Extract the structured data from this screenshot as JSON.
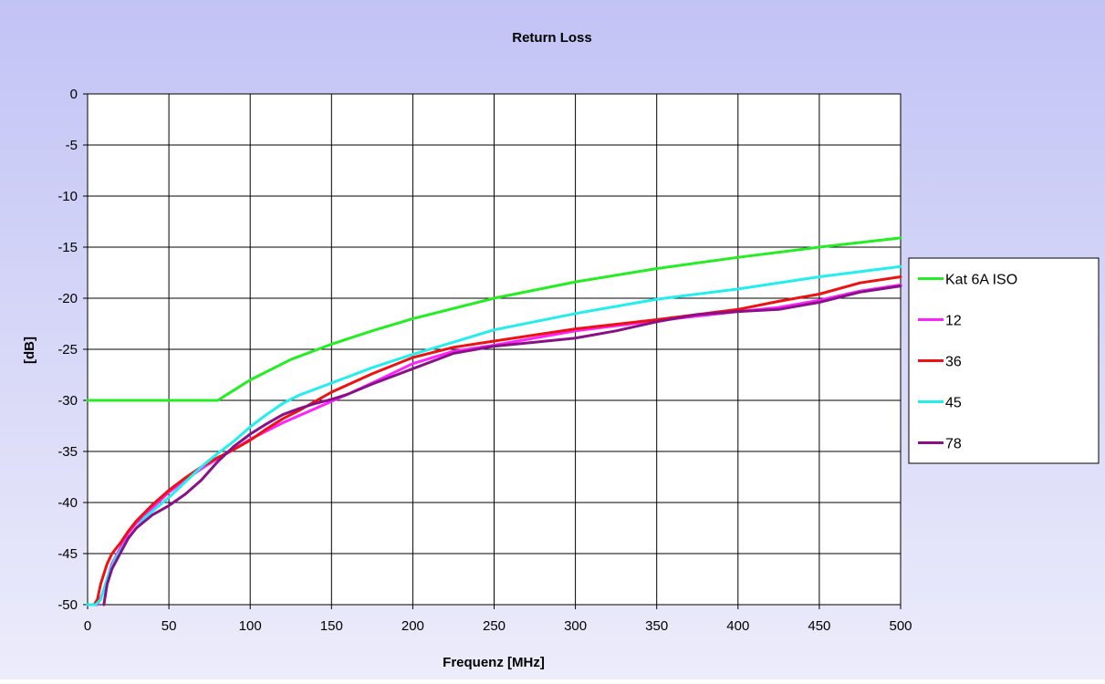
{
  "chart_data": {
    "type": "line",
    "title": "Return Loss",
    "xlabel": "Frequenz [MHz]",
    "ylabel": "[dB]",
    "xlim": [
      0,
      500
    ],
    "ylim": [
      -50,
      0
    ],
    "x_ticks": [
      0,
      50,
      100,
      150,
      200,
      250,
      300,
      350,
      400,
      450,
      500
    ],
    "y_ticks": [
      0,
      -5,
      -10,
      -15,
      -20,
      -25,
      -30,
      -35,
      -40,
      -45,
      -50
    ],
    "grid": true,
    "legend_position": "right",
    "colors": {
      "background_top": "#c2c3f5",
      "background_bottom": "#ececfb",
      "plot_area": "#ffffff",
      "grid": "#000000"
    },
    "series": [
      {
        "name": "Kat 6A ISO",
        "color": "#22ee22",
        "points": [
          [
            0,
            -30
          ],
          [
            80,
            -30
          ],
          [
            100,
            -28
          ],
          [
            125,
            -26
          ],
          [
            150,
            -24.5
          ],
          [
            175,
            -23.2
          ],
          [
            200,
            -22
          ],
          [
            250,
            -20
          ],
          [
            300,
            -18.4
          ],
          [
            350,
            -17.1
          ],
          [
            400,
            -16
          ],
          [
            450,
            -15
          ],
          [
            500,
            -14.1
          ]
        ]
      },
      {
        "name": "12",
        "color": "#ff22ff",
        "points": [
          [
            3,
            -50
          ],
          [
            6,
            -50
          ],
          [
            9,
            -49
          ],
          [
            12,
            -47.5
          ],
          [
            15,
            -46
          ],
          [
            20,
            -44.5
          ],
          [
            25,
            -43
          ],
          [
            30,
            -42
          ],
          [
            40,
            -40.5
          ],
          [
            50,
            -39
          ],
          [
            60,
            -37.8
          ],
          [
            70,
            -36.7
          ],
          [
            80,
            -35.7
          ],
          [
            90,
            -34.8
          ],
          [
            100,
            -33.8
          ],
          [
            110,
            -33
          ],
          [
            120,
            -32.2
          ],
          [
            130,
            -31.5
          ],
          [
            140,
            -30.8
          ],
          [
            150,
            -30.1
          ],
          [
            160,
            -29.4
          ],
          [
            175,
            -28.3
          ],
          [
            200,
            -26.4
          ],
          [
            225,
            -25.2
          ],
          [
            250,
            -24.6
          ],
          [
            275,
            -23.9
          ],
          [
            300,
            -23.2
          ],
          [
            350,
            -22.2
          ],
          [
            400,
            -21.3
          ],
          [
            425,
            -20.9
          ],
          [
            450,
            -20.2
          ],
          [
            475,
            -19.3
          ],
          [
            500,
            -18.7
          ]
        ]
      },
      {
        "name": "36",
        "color": "#ee1111",
        "points": [
          [
            4,
            -50
          ],
          [
            6,
            -49.5
          ],
          [
            8,
            -48
          ],
          [
            10,
            -47
          ],
          [
            12,
            -46
          ],
          [
            15,
            -45
          ],
          [
            20,
            -44
          ],
          [
            25,
            -42.8
          ],
          [
            30,
            -41.8
          ],
          [
            40,
            -40.2
          ],
          [
            50,
            -38.8
          ],
          [
            60,
            -37.6
          ],
          [
            70,
            -36.5
          ],
          [
            80,
            -35.6
          ],
          [
            90,
            -34.8
          ],
          [
            100,
            -33.9
          ],
          [
            110,
            -32.8
          ],
          [
            120,
            -31.8
          ],
          [
            130,
            -31
          ],
          [
            140,
            -30.1
          ],
          [
            150,
            -29.2
          ],
          [
            175,
            -27.4
          ],
          [
            200,
            -25.8
          ],
          [
            225,
            -24.8
          ],
          [
            250,
            -24.2
          ],
          [
            300,
            -23
          ],
          [
            350,
            -22.1
          ],
          [
            400,
            -21.1
          ],
          [
            425,
            -20.3
          ],
          [
            450,
            -19.6
          ],
          [
            475,
            -18.5
          ],
          [
            500,
            -17.9
          ]
        ]
      },
      {
        "name": "45",
        "color": "#22eeee",
        "points": [
          [
            0,
            -50
          ],
          [
            5,
            -50
          ],
          [
            8,
            -49.5
          ],
          [
            10,
            -48.5
          ],
          [
            13,
            -47
          ],
          [
            17,
            -45.5
          ],
          [
            25,
            -43.5
          ],
          [
            35,
            -41.5
          ],
          [
            50,
            -39.5
          ],
          [
            60,
            -38
          ],
          [
            70,
            -36.5
          ],
          [
            80,
            -35.2
          ],
          [
            90,
            -34
          ],
          [
            100,
            -32.6
          ],
          [
            110,
            -31.4
          ],
          [
            120,
            -30.3
          ],
          [
            130,
            -29.5
          ],
          [
            150,
            -28.3
          ],
          [
            175,
            -26.8
          ],
          [
            200,
            -25.5
          ],
          [
            250,
            -23.1
          ],
          [
            300,
            -21.5
          ],
          [
            350,
            -20.1
          ],
          [
            400,
            -19.1
          ],
          [
            450,
            -17.9
          ],
          [
            500,
            -16.9
          ]
        ]
      },
      {
        "name": "78",
        "color": "#881188",
        "points": [
          [
            10,
            -50
          ],
          [
            12,
            -48
          ],
          [
            15,
            -46.5
          ],
          [
            20,
            -45
          ],
          [
            25,
            -43.5
          ],
          [
            30,
            -42.5
          ],
          [
            40,
            -41.2
          ],
          [
            50,
            -40.3
          ],
          [
            60,
            -39.2
          ],
          [
            70,
            -37.8
          ],
          [
            80,
            -36
          ],
          [
            90,
            -34.5
          ],
          [
            100,
            -33.3
          ],
          [
            110,
            -32.3
          ],
          [
            120,
            -31.4
          ],
          [
            130,
            -30.8
          ],
          [
            140,
            -30.3
          ],
          [
            150,
            -29.9
          ],
          [
            160,
            -29.4
          ],
          [
            175,
            -28.4
          ],
          [
            200,
            -26.9
          ],
          [
            225,
            -25.4
          ],
          [
            250,
            -24.7
          ],
          [
            275,
            -24.3
          ],
          [
            300,
            -23.9
          ],
          [
            325,
            -23.2
          ],
          [
            350,
            -22.3
          ],
          [
            375,
            -21.6
          ],
          [
            400,
            -21.3
          ],
          [
            425,
            -21.1
          ],
          [
            450,
            -20.4
          ],
          [
            475,
            -19.4
          ],
          [
            500,
            -18.8
          ]
        ]
      }
    ]
  }
}
